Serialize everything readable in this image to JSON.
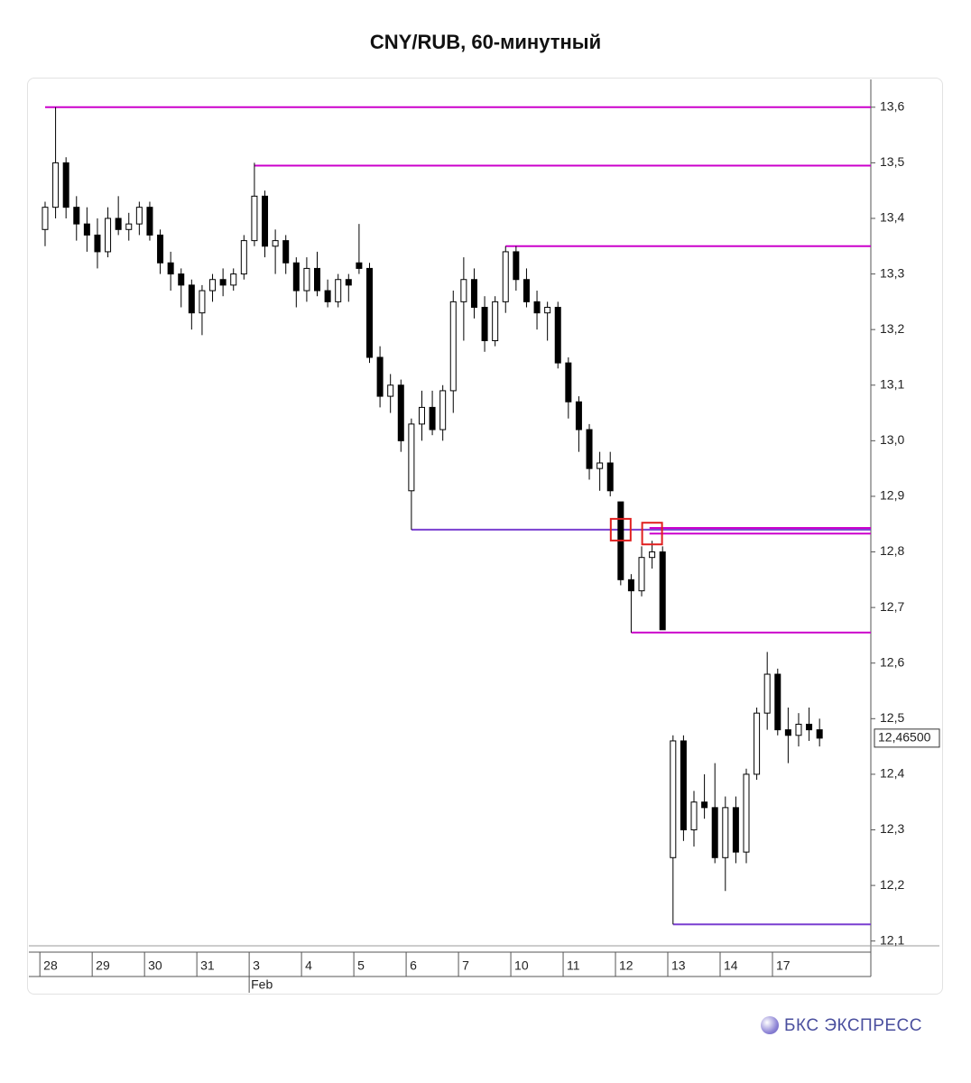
{
  "chart_data": {
    "type": "candlestick",
    "title": "CNY/RUB, 60-минутный",
    "x": [
      0.1,
      0.3,
      0.5,
      0.7,
      0.9,
      1.1,
      1.3,
      1.5,
      1.7,
      1.9,
      2.1,
      2.3,
      2.5,
      2.7,
      2.9,
      3.1,
      3.3,
      3.5,
      3.7,
      3.9,
      4.1,
      4.3,
      4.5,
      4.7,
      4.9,
      5.1,
      5.3,
      5.5,
      5.7,
      5.9,
      6.1,
      6.3,
      6.5,
      6.7,
      6.9,
      7.1,
      7.3,
      7.5,
      7.7,
      7.9,
      8.1,
      8.3,
      8.5,
      8.7,
      8.9,
      9.1,
      9.3,
      9.5,
      9.7,
      9.9,
      10.1,
      10.3,
      10.5,
      10.7,
      10.9,
      11.1,
      11.3,
      11.5,
      11.7,
      11.9,
      12.1,
      12.3,
      12.5,
      12.7,
      12.9,
      13.1,
      13.3,
      13.5,
      13.7,
      13.9,
      14.1,
      14.3,
      14.5,
      14.7,
      14.9
    ],
    "open": [
      13.38,
      13.42,
      13.5,
      13.42,
      13.39,
      13.37,
      13.34,
      13.4,
      13.38,
      13.39,
      13.42,
      13.37,
      13.32,
      13.3,
      13.28,
      13.23,
      13.27,
      13.29,
      13.28,
      13.3,
      13.36,
      13.44,
      13.35,
      13.36,
      13.32,
      13.27,
      13.31,
      13.27,
      13.25,
      13.29,
      13.32,
      13.31,
      13.15,
      13.08,
      13.1,
      12.91,
      13.03,
      13.06,
      13.02,
      13.09,
      13.25,
      13.29,
      13.24,
      13.18,
      13.25,
      13.34,
      13.29,
      13.25,
      13.23,
      13.24,
      13.14,
      13.07,
      13.02,
      12.95,
      12.96,
      12.89,
      12.75,
      12.73,
      12.79,
      12.8,
      12.25,
      12.46,
      12.3,
      12.35,
      12.34,
      12.25,
      12.34,
      12.26,
      12.4,
      12.51,
      12.58,
      12.48,
      12.47,
      12.49,
      12.48
    ],
    "high": [
      13.43,
      13.6,
      13.51,
      13.44,
      13.42,
      13.4,
      13.42,
      13.44,
      13.41,
      13.43,
      13.43,
      13.38,
      13.34,
      13.31,
      13.29,
      13.28,
      13.3,
      13.31,
      13.31,
      13.37,
      13.5,
      13.45,
      13.38,
      13.37,
      13.33,
      13.33,
      13.34,
      13.29,
      13.3,
      13.3,
      13.39,
      13.32,
      13.17,
      13.12,
      13.11,
      13.04,
      13.09,
      13.09,
      13.1,
      13.27,
      13.33,
      13.31,
      13.26,
      13.26,
      13.35,
      13.35,
      13.31,
      13.27,
      13.25,
      13.25,
      13.15,
      13.08,
      13.03,
      12.98,
      12.98,
      12.89,
      12.76,
      12.81,
      12.82,
      12.81,
      12.47,
      12.47,
      12.37,
      12.4,
      12.42,
      12.36,
      12.36,
      12.41,
      12.52,
      12.62,
      12.59,
      12.52,
      12.51,
      12.52,
      12.5
    ],
    "low": [
      13.35,
      13.4,
      13.4,
      13.36,
      13.34,
      13.31,
      13.33,
      13.37,
      13.36,
      13.37,
      13.36,
      13.3,
      13.27,
      13.24,
      13.2,
      13.19,
      13.25,
      13.26,
      13.27,
      13.29,
      13.35,
      13.33,
      13.3,
      13.3,
      13.24,
      13.25,
      13.26,
      13.24,
      13.24,
      13.25,
      13.3,
      13.14,
      13.06,
      13.05,
      12.98,
      12.84,
      13.0,
      13.01,
      13.0,
      13.05,
      13.18,
      13.22,
      13.16,
      13.17,
      13.23,
      13.27,
      13.24,
      13.2,
      13.18,
      13.13,
      13.04,
      12.98,
      12.93,
      12.91,
      12.9,
      12.74,
      12.655,
      12.72,
      12.77,
      12.66,
      12.13,
      12.28,
      12.27,
      12.32,
      12.24,
      12.19,
      12.24,
      12.24,
      12.39,
      12.48,
      12.47,
      12.42,
      12.45,
      12.46,
      12.45
    ],
    "close": [
      13.42,
      13.5,
      13.42,
      13.39,
      13.37,
      13.34,
      13.4,
      13.38,
      13.39,
      13.42,
      13.37,
      13.32,
      13.3,
      13.28,
      13.23,
      13.27,
      13.29,
      13.28,
      13.3,
      13.36,
      13.44,
      13.35,
      13.36,
      13.32,
      13.27,
      13.31,
      13.27,
      13.25,
      13.29,
      13.28,
      13.31,
      13.15,
      13.08,
      13.1,
      13.0,
      13.03,
      13.06,
      13.02,
      13.09,
      13.25,
      13.29,
      13.24,
      13.18,
      13.25,
      13.34,
      13.29,
      13.25,
      13.23,
      13.24,
      13.14,
      13.07,
      13.02,
      12.95,
      12.96,
      12.91,
      12.75,
      12.73,
      12.79,
      12.8,
      12.66,
      12.46,
      12.3,
      12.35,
      12.34,
      12.25,
      12.34,
      12.26,
      12.4,
      12.51,
      12.58,
      12.48,
      12.47,
      12.49,
      12.48,
      12.465
    ],
    "xlim": [
      -0.21,
      15.88
    ],
    "xticks": [
      {
        "value": 0,
        "label": "28"
      },
      {
        "value": 1,
        "label": "29"
      },
      {
        "value": 2,
        "label": "30"
      },
      {
        "value": 3,
        "label": "31"
      },
      {
        "value": 4,
        "label": "3"
      },
      {
        "value": 5,
        "label": "4"
      },
      {
        "value": 6,
        "label": "5"
      },
      {
        "value": 7,
        "label": "6"
      },
      {
        "value": 8,
        "label": "7"
      },
      {
        "value": 9,
        "label": "10"
      },
      {
        "value": 10,
        "label": "11"
      },
      {
        "value": 11,
        "label": "12"
      },
      {
        "value": 12,
        "label": "13"
      },
      {
        "value": 13,
        "label": "14"
      },
      {
        "value": 14,
        "label": "17"
      }
    ],
    "x_month_labels": [
      {
        "value": 4,
        "label": "Feb"
      }
    ],
    "ylim": [
      12.08,
      13.65
    ],
    "yticks": [
      {
        "value": 12.1,
        "label": "12,1"
      },
      {
        "value": 12.2,
        "label": "12,2"
      },
      {
        "value": 12.3,
        "label": "12,3"
      },
      {
        "value": 12.4,
        "label": "12,4"
      },
      {
        "value": 12.5,
        "label": "12,5"
      },
      {
        "value": 12.6,
        "label": "12,6"
      },
      {
        "value": 12.7,
        "label": "12,7"
      },
      {
        "value": 12.8,
        "label": "12,8"
      },
      {
        "value": 12.9,
        "label": "12,9"
      },
      {
        "value": 13.0,
        "label": "13,0"
      },
      {
        "value": 13.1,
        "label": "13,1"
      },
      {
        "value": 13.2,
        "label": "13,2"
      },
      {
        "value": 13.3,
        "label": "13,3"
      },
      {
        "value": 13.4,
        "label": "13,4"
      },
      {
        "value": 13.5,
        "label": "13,5"
      },
      {
        "value": 13.6,
        "label": "13,6"
      }
    ],
    "last_price": {
      "value": 12.465,
      "label": "12,46500"
    },
    "levels": [
      {
        "value": 13.6,
        "start": 0.1,
        "color": "#cc00cc"
      },
      {
        "value": 13.495,
        "start": 4.1,
        "color": "#cc00cc"
      },
      {
        "value": 13.35,
        "start": 8.9,
        "color": "#cc00cc"
      },
      {
        "value": 12.84,
        "start": 7.1,
        "color": "#7a3fd1"
      },
      {
        "value": 12.843,
        "start": 11.65,
        "color": "#cc00cc"
      },
      {
        "value": 12.833,
        "start": 11.65,
        "color": "#cc00cc"
      },
      {
        "value": 12.655,
        "start": 11.3,
        "color": "#cc00cc"
      },
      {
        "value": 12.13,
        "start": 12.1,
        "color": "#7a3fd1"
      }
    ],
    "highlights": [
      {
        "x": 11.1,
        "y": 12.84
      },
      {
        "x": 11.7,
        "y": 12.833
      }
    ]
  },
  "brand": "БКС ЭКСПРЕСС"
}
